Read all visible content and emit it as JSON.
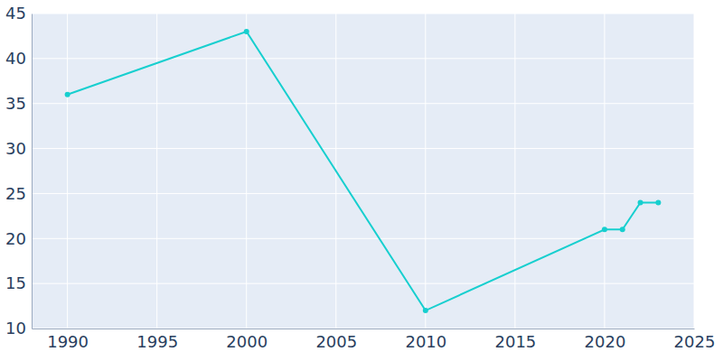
{
  "chart_data": {
    "type": "line",
    "x": [
      1990,
      2000,
      2010,
      2020,
      2021,
      2022,
      2023
    ],
    "values": [
      36,
      43,
      12,
      21,
      21,
      24,
      24
    ],
    "color": "#17cfcf",
    "marker": "circle",
    "xlim": [
      1988,
      2025
    ],
    "xticks": [
      1990,
      1995,
      2000,
      2005,
      2010,
      2015,
      2020,
      2025
    ],
    "ylim": [
      10,
      45
    ],
    "yticks": [
      10,
      15,
      20,
      25,
      30,
      35,
      40,
      45
    ],
    "grid": true
  }
}
